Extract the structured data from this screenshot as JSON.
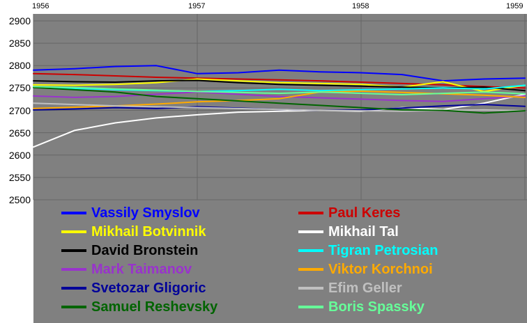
{
  "chart_data": {
    "type": "line",
    "title": "",
    "xlabel": "",
    "ylabel": "",
    "background_color": "#808080",
    "gridline_color": "#666666",
    "x_axis": {
      "min": 1956,
      "max": 1959,
      "ticks": [
        1956,
        1957,
        1958,
        1959
      ],
      "tick_labels": [
        "1956",
        "1957",
        "1958",
        "1959"
      ]
    },
    "y_axis": {
      "min": 2500,
      "max": 2900,
      "ticks": [
        2900,
        2850,
        2800,
        2750,
        2700,
        2650,
        2600,
        2550,
        2500
      ],
      "tick_labels": [
        "2900",
        "2850",
        "2800",
        "2750",
        "2700",
        "2650",
        "2600",
        "2550",
        "2500"
      ]
    },
    "x": [
      1956.0,
      1956.25,
      1956.5,
      1956.75,
      1957.0,
      1957.25,
      1957.5,
      1957.75,
      1958.0,
      1958.25,
      1958.5,
      1958.75,
      1959.0
    ],
    "series": [
      {
        "name": "Vassily Smyslov",
        "color": "#0000ff",
        "values": [
          2790,
          2793,
          2798,
          2800,
          2782,
          2784,
          2790,
          2786,
          2784,
          2780,
          2766,
          2770,
          2772
        ]
      },
      {
        "name": "Paul Keres",
        "color": "#cc0000",
        "values": [
          2782,
          2780,
          2777,
          2774,
          2772,
          2770,
          2768,
          2766,
          2763,
          2760,
          2757,
          2753,
          2750
        ]
      },
      {
        "name": "Mikhail Botvinnik",
        "color": "#ffff00",
        "values": [
          2757,
          2756,
          2758,
          2762,
          2770,
          2766,
          2762,
          2760,
          2758,
          2752,
          2764,
          2742,
          2756
        ]
      },
      {
        "name": "Mikhail Tal",
        "color": "#ffffff",
        "values": [
          2618,
          2655,
          2672,
          2683,
          2690,
          2696,
          2698,
          2700,
          2698,
          2706,
          2702,
          2716,
          2736
        ]
      },
      {
        "name": "David Bronstein",
        "color": "#000000",
        "values": [
          2766,
          2764,
          2763,
          2766,
          2767,
          2762,
          2758,
          2756,
          2754,
          2752,
          2750,
          2752,
          2744
        ]
      },
      {
        "name": "Tigran Petrosian",
        "color": "#00ffff",
        "values": [
          2752,
          2749,
          2746,
          2744,
          2742,
          2744,
          2747,
          2744,
          2746,
          2748,
          2750,
          2748,
          2756
        ]
      },
      {
        "name": "Mark Taimanov",
        "color": "#9933cc",
        "values": [
          2732,
          2729,
          2731,
          2736,
          2741,
          2736,
          2731,
          2728,
          2725,
          2722,
          2720,
          2726,
          2732
        ]
      },
      {
        "name": "Viktor Korchnoi",
        "color": "#ffaa00",
        "values": [
          2704,
          2707,
          2710,
          2714,
          2719,
          2722,
          2726,
          2741,
          2743,
          2740,
          2737,
          2734,
          2729
        ]
      },
      {
        "name": "Svetozar Gligoric",
        "color": "#000099",
        "values": [
          2701,
          2703,
          2706,
          2704,
          2708,
          2705,
          2702,
          2700,
          2701,
          2705,
          2710,
          2713,
          2709
        ]
      },
      {
        "name": "Efim Geller",
        "color": "#c0c0c0",
        "values": [
          2716,
          2713,
          2710,
          2708,
          2706,
          2704,
          2702,
          2700,
          2699,
          2698,
          2700,
          2701,
          2699
        ]
      },
      {
        "name": "Samuel Reshevsky",
        "color": "#006400",
        "values": [
          2751,
          2746,
          2741,
          2731,
          2726,
          2721,
          2716,
          2711,
          2706,
          2701,
          2700,
          2694,
          2699
        ]
      },
      {
        "name": "Boris Spassky",
        "color": "#66ff99",
        "values": [
          2753,
          2751,
          2748,
          2745,
          2742,
          2740,
          2738,
          2741,
          2738,
          2735,
          2738,
          2741,
          2737
        ]
      }
    ],
    "legend": {
      "position": "bottom-inside",
      "columns": 2,
      "order": [
        "Vassily Smyslov",
        "Paul Keres",
        "Mikhail Botvinnik",
        "Mikhail Tal",
        "David Bronstein",
        "Tigran Petrosian",
        "Mark Taimanov",
        "Viktor Korchnoi",
        "Svetozar Gligoric",
        "Efim Geller",
        "Samuel Reshevsky",
        "Boris Spassky"
      ]
    }
  }
}
